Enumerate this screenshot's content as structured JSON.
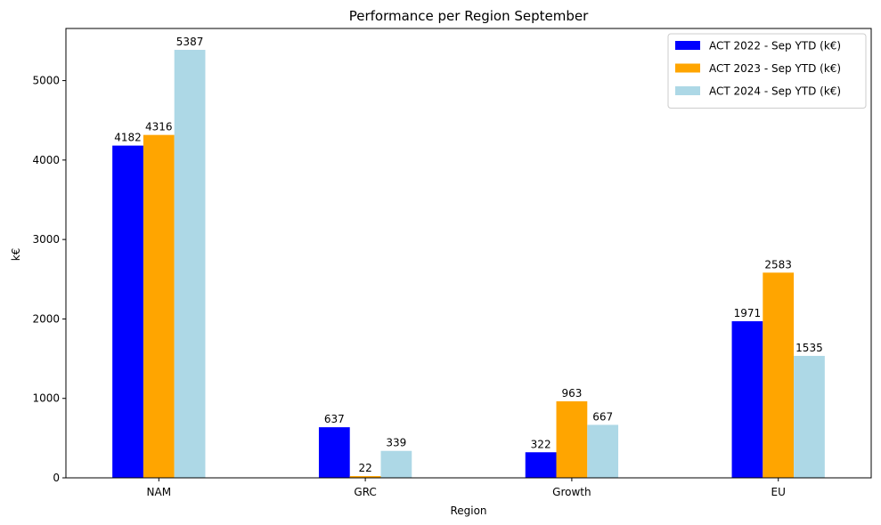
{
  "chart_data": {
    "type": "bar",
    "title": "Performance per Region September",
    "xlabel": "Region",
    "ylabel": "k€",
    "categories": [
      "NAM",
      "GRC",
      "Growth",
      "EU"
    ],
    "ylim": [
      0,
      5656
    ],
    "yticks": [
      0,
      1000,
      2000,
      3000,
      4000,
      5000
    ],
    "grid": false,
    "legend_position": "top-right",
    "series": [
      {
        "name": "ACT 2022 - Sep YTD (k€)",
        "color": "#0000ff",
        "values": [
          4182,
          637,
          322,
          1971
        ]
      },
      {
        "name": "ACT 2023 - Sep YTD (k€)",
        "color": "#ffa500",
        "values": [
          4316,
          22,
          963,
          2583
        ]
      },
      {
        "name": "ACT 2024 - Sep YTD (k€)",
        "color": "#add8e6",
        "values": [
          5387,
          339,
          667,
          1535
        ]
      }
    ]
  }
}
